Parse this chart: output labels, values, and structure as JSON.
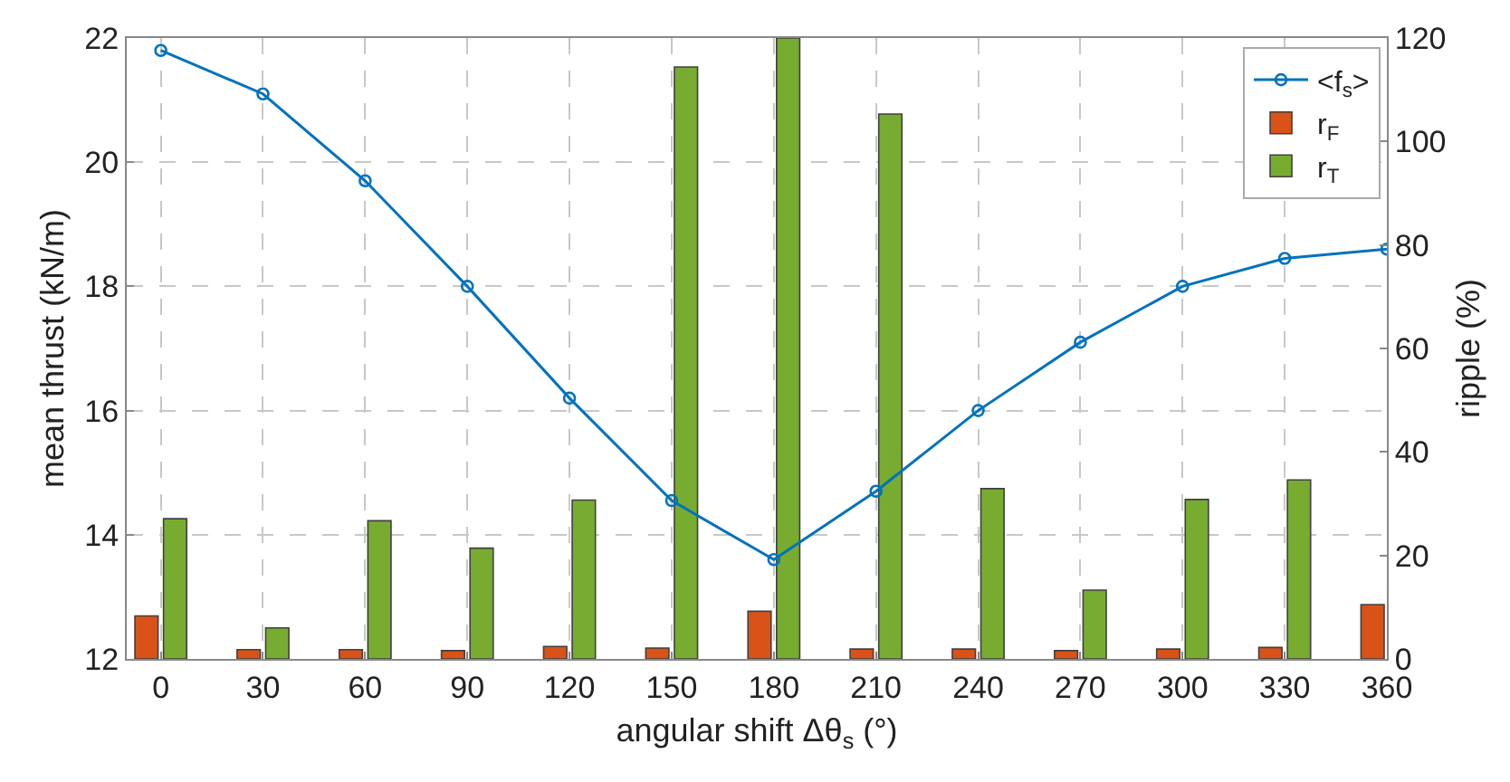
{
  "chart_data": {
    "type": "bar",
    "xlabel": "angular shift Δθ$_{s}$ (°)",
    "ylabel": "mean thrust (kN/m)",
    "y2label": "ripple (%)",
    "x": [
      0,
      30,
      60,
      90,
      120,
      150,
      180,
      210,
      240,
      270,
      300,
      330,
      360
    ],
    "series": [
      {
        "name": "<f$_{s}$>",
        "type": "line",
        "color": "#0072bd",
        "marker": "circle",
        "values": [
          21.8,
          21.1,
          19.7,
          18.0,
          16.2,
          14.55,
          13.6,
          14.7,
          16.0,
          17.1,
          18.0,
          18.45,
          18.6
        ]
      },
      {
        "name": "r$_{F}$",
        "axis": "y2",
        "color": "#d95319",
        "values": [
          8.3,
          1.8,
          1.8,
          1.6,
          2.4,
          2.1,
          9.2,
          1.9,
          1.9,
          1.6,
          1.9,
          2.2,
          10.5
        ]
      },
      {
        "name": "r$_{T}$",
        "axis": "y2",
        "color": "#77ac30",
        "values": [
          27.1,
          6.0,
          26.7,
          21.4,
          30.7,
          114.4,
          120,
          105.3,
          32.9,
          13.3,
          30.8,
          34.6,
          null
        ]
      }
    ],
    "xlim": [
      -10,
      360
    ],
    "xticks": [
      0,
      30,
      60,
      90,
      120,
      150,
      180,
      210,
      240,
      270,
      300,
      330,
      360
    ],
    "ylim": [
      12,
      22
    ],
    "yticks": [
      12,
      14,
      16,
      18,
      20,
      22
    ],
    "y2lim": [
      0,
      120
    ],
    "y2ticks": [
      0,
      20,
      40,
      60,
      80,
      100,
      120
    ],
    "grid": true,
    "legend": "top right"
  }
}
